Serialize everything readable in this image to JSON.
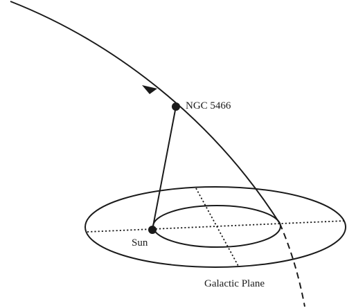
{
  "diagram": {
    "labels": {
      "cluster": "NGC 5466",
      "sun": "Sun",
      "plane": "Galactic Plane"
    }
  }
}
